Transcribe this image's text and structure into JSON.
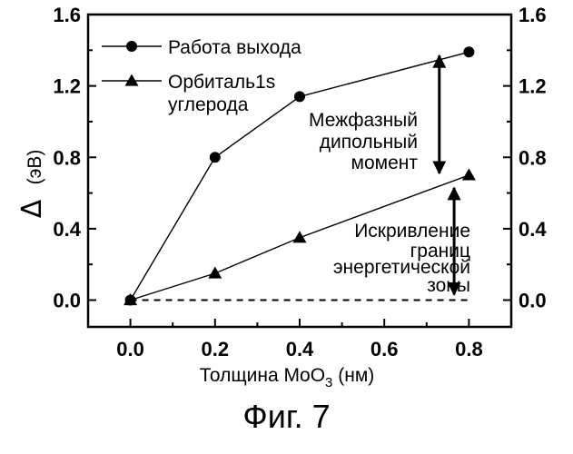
{
  "chart_data": {
    "type": "line",
    "xlabel_main": "Толщина MoO",
    "xlabel_sub": "3",
    "xlabel_unit": " (нм)",
    "ylabel_symbol": "Δ",
    "ylabel_unit": "(эВ)",
    "xlim": [
      -0.1,
      0.9
    ],
    "ylim": [
      -0.15,
      1.6
    ],
    "x_ticks": [
      {
        "value": 0.0,
        "label": "0.0"
      },
      {
        "value": 0.2,
        "label": "0.2"
      },
      {
        "value": 0.4,
        "label": "0.4"
      },
      {
        "value": 0.6,
        "label": "0.6"
      },
      {
        "value": 0.8,
        "label": "0.8"
      }
    ],
    "y_ticks": [
      {
        "value": 0.0,
        "label": "0.0"
      },
      {
        "value": 0.4,
        "label": "0.4"
      },
      {
        "value": 0.8,
        "label": "0.8"
      },
      {
        "value": 1.2,
        "label": "1.2"
      },
      {
        "value": 1.6,
        "label": "1.6"
      }
    ],
    "series": [
      {
        "name": "Работа выхода",
        "marker": "circle",
        "x": [
          0.0,
          0.2,
          0.4,
          0.8
        ],
        "y": [
          0.0,
          0.8,
          1.14,
          1.39
        ]
      },
      {
        "name": "Орбиталь1s",
        "name_line2": "углерода",
        "marker": "triangle",
        "x": [
          0.0,
          0.2,
          0.4,
          0.8
        ],
        "y": [
          0.0,
          0.15,
          0.35,
          0.7
        ]
      }
    ],
    "baseline": {
      "y": 0.0,
      "style": "dashed"
    },
    "annotations": [
      {
        "id": "dipole",
        "lines": [
          "Межфазный",
          "дипольный",
          "момент"
        ],
        "arrow_x": 0.73,
        "arrow_from": 1.39,
        "arrow_to": 0.7
      },
      {
        "id": "band",
        "lines": [
          "Искривление",
          "границ",
          "энергетической",
          "зоны"
        ],
        "arrow_x": 0.765,
        "arrow_from": 0.7,
        "arrow_to": 0.0
      }
    ]
  },
  "caption": "Фиг. 7"
}
